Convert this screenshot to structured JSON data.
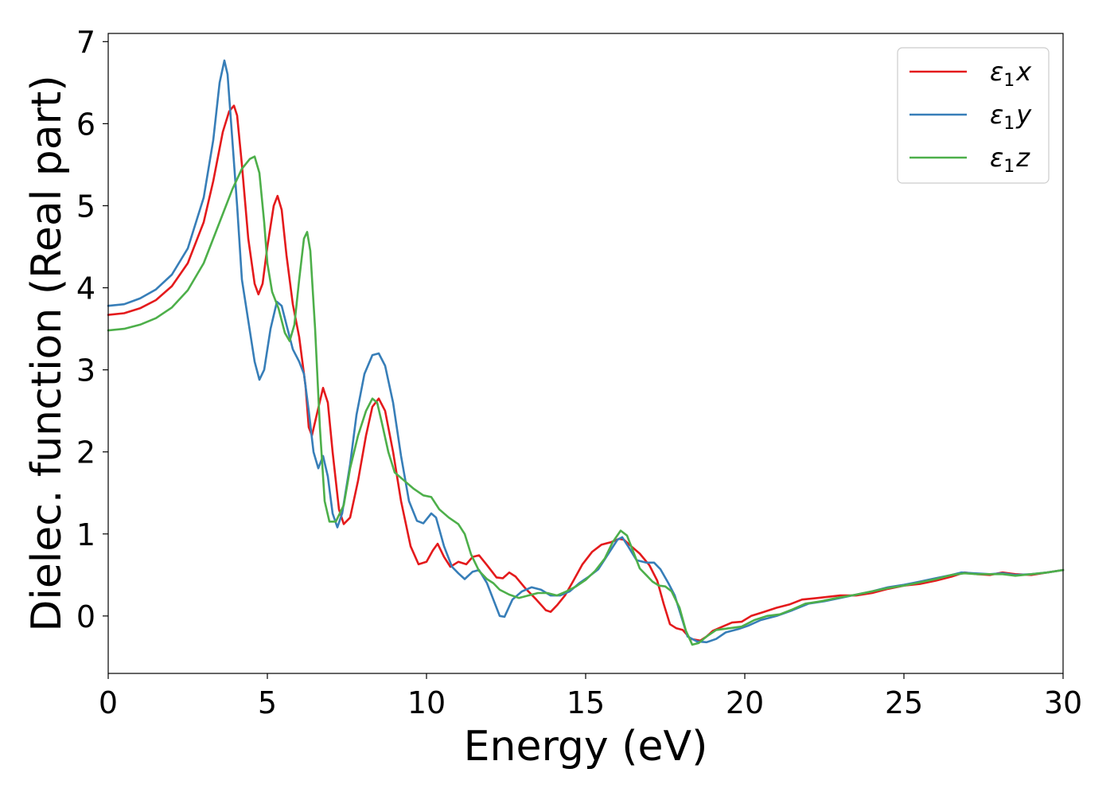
{
  "chart_data": {
    "type": "line",
    "xlabel": "Energy (eV)",
    "ylabel": "Dielec. function (Real part)",
    "xlim": [
      0,
      30
    ],
    "ylim": [
      -0.7,
      7.1
    ],
    "xticks": [
      "0",
      "5",
      "10",
      "15",
      "20",
      "25",
      "30"
    ],
    "yticks": [
      "0",
      "1",
      "2",
      "3",
      "4",
      "5",
      "6",
      "7"
    ],
    "grid": false,
    "legend_position": "top-right",
    "series": [
      {
        "name": "ε1x",
        "legend_base": "ε",
        "legend_sub": "1",
        "legend_var": "x",
        "color": "#e41a1c",
        "points": [
          [
            0,
            3.67
          ],
          [
            0.5,
            3.69
          ],
          [
            1.0,
            3.75
          ],
          [
            1.5,
            3.85
          ],
          [
            2.0,
            4.02
          ],
          [
            2.5,
            4.3
          ],
          [
            3.0,
            4.8
          ],
          [
            3.3,
            5.3
          ],
          [
            3.6,
            5.9
          ],
          [
            3.8,
            6.15
          ],
          [
            3.95,
            6.22
          ],
          [
            4.05,
            6.1
          ],
          [
            4.2,
            5.5
          ],
          [
            4.4,
            4.6
          ],
          [
            4.6,
            4.05
          ],
          [
            4.72,
            3.92
          ],
          [
            4.85,
            4.05
          ],
          [
            5.0,
            4.5
          ],
          [
            5.2,
            5.0
          ],
          [
            5.32,
            5.12
          ],
          [
            5.45,
            4.95
          ],
          [
            5.6,
            4.4
          ],
          [
            5.8,
            3.8
          ],
          [
            6.0,
            3.4
          ],
          [
            6.2,
            2.8
          ],
          [
            6.3,
            2.3
          ],
          [
            6.4,
            2.2
          ],
          [
            6.55,
            2.45
          ],
          [
            6.75,
            2.78
          ],
          [
            6.9,
            2.6
          ],
          [
            7.05,
            2.0
          ],
          [
            7.25,
            1.3
          ],
          [
            7.4,
            1.12
          ],
          [
            7.6,
            1.2
          ],
          [
            7.85,
            1.65
          ],
          [
            8.1,
            2.2
          ],
          [
            8.3,
            2.55
          ],
          [
            8.5,
            2.65
          ],
          [
            8.7,
            2.5
          ],
          [
            8.95,
            2.0
          ],
          [
            9.2,
            1.4
          ],
          [
            9.5,
            0.85
          ],
          [
            9.75,
            0.63
          ],
          [
            10.0,
            0.66
          ],
          [
            10.2,
            0.8
          ],
          [
            10.35,
            0.88
          ],
          [
            10.55,
            0.72
          ],
          [
            10.75,
            0.6
          ],
          [
            11.0,
            0.66
          ],
          [
            11.25,
            0.63
          ],
          [
            11.45,
            0.72
          ],
          [
            11.65,
            0.74
          ],
          [
            11.9,
            0.62
          ],
          [
            12.2,
            0.47
          ],
          [
            12.4,
            0.46
          ],
          [
            12.6,
            0.53
          ],
          [
            12.8,
            0.48
          ],
          [
            13.1,
            0.34
          ],
          [
            13.45,
            0.2
          ],
          [
            13.75,
            0.07
          ],
          [
            13.9,
            0.05
          ],
          [
            14.1,
            0.13
          ],
          [
            14.35,
            0.25
          ],
          [
            14.6,
            0.42
          ],
          [
            14.9,
            0.63
          ],
          [
            15.2,
            0.78
          ],
          [
            15.5,
            0.87
          ],
          [
            15.8,
            0.9
          ],
          [
            16.05,
            0.94
          ],
          [
            16.2,
            0.93
          ],
          [
            16.4,
            0.86
          ],
          [
            16.7,
            0.76
          ],
          [
            17.0,
            0.62
          ],
          [
            17.25,
            0.43
          ],
          [
            17.45,
            0.15
          ],
          [
            17.65,
            -0.1
          ],
          [
            17.85,
            -0.15
          ],
          [
            18.05,
            -0.17
          ],
          [
            18.3,
            -0.28
          ],
          [
            18.6,
            -0.3
          ],
          [
            18.8,
            -0.25
          ],
          [
            19.0,
            -0.18
          ],
          [
            19.3,
            -0.13
          ],
          [
            19.6,
            -0.08
          ],
          [
            19.9,
            -0.07
          ],
          [
            20.2,
            0.0
          ],
          [
            20.6,
            0.05
          ],
          [
            21.0,
            0.1
          ],
          [
            21.4,
            0.14
          ],
          [
            21.8,
            0.2
          ],
          [
            22.3,
            0.22
          ],
          [
            23.0,
            0.25
          ],
          [
            23.5,
            0.25
          ],
          [
            24.0,
            0.28
          ],
          [
            24.5,
            0.33
          ],
          [
            25.0,
            0.37
          ],
          [
            25.5,
            0.39
          ],
          [
            26.0,
            0.43
          ],
          [
            26.5,
            0.48
          ],
          [
            26.9,
            0.53
          ],
          [
            27.3,
            0.51
          ],
          [
            27.7,
            0.5
          ],
          [
            28.1,
            0.53
          ],
          [
            28.5,
            0.51
          ],
          [
            29.0,
            0.5
          ],
          [
            29.5,
            0.53
          ],
          [
            30.0,
            0.56
          ]
        ]
      },
      {
        "name": "ε1y",
        "legend_base": "ε",
        "legend_sub": "1",
        "legend_var": "y",
        "color": "#377eb8",
        "points": [
          [
            0,
            3.78
          ],
          [
            0.5,
            3.8
          ],
          [
            1.0,
            3.87
          ],
          [
            1.5,
            3.98
          ],
          [
            2.0,
            4.16
          ],
          [
            2.5,
            4.48
          ],
          [
            3.0,
            5.1
          ],
          [
            3.3,
            5.8
          ],
          [
            3.5,
            6.5
          ],
          [
            3.65,
            6.77
          ],
          [
            3.75,
            6.6
          ],
          [
            3.9,
            5.8
          ],
          [
            4.05,
            5.0
          ],
          [
            4.2,
            4.1
          ],
          [
            4.4,
            3.6
          ],
          [
            4.6,
            3.1
          ],
          [
            4.75,
            2.88
          ],
          [
            4.9,
            3.0
          ],
          [
            5.1,
            3.5
          ],
          [
            5.3,
            3.83
          ],
          [
            5.45,
            3.78
          ],
          [
            5.6,
            3.55
          ],
          [
            5.8,
            3.25
          ],
          [
            6.0,
            3.1
          ],
          [
            6.15,
            2.95
          ],
          [
            6.3,
            2.5
          ],
          [
            6.45,
            2.0
          ],
          [
            6.6,
            1.8
          ],
          [
            6.75,
            1.95
          ],
          [
            6.9,
            1.7
          ],
          [
            7.05,
            1.25
          ],
          [
            7.2,
            1.08
          ],
          [
            7.35,
            1.25
          ],
          [
            7.6,
            1.85
          ],
          [
            7.8,
            2.45
          ],
          [
            8.05,
            2.95
          ],
          [
            8.3,
            3.18
          ],
          [
            8.5,
            3.2
          ],
          [
            8.7,
            3.05
          ],
          [
            8.95,
            2.6
          ],
          [
            9.2,
            1.95
          ],
          [
            9.45,
            1.4
          ],
          [
            9.7,
            1.16
          ],
          [
            9.9,
            1.13
          ],
          [
            10.15,
            1.25
          ],
          [
            10.3,
            1.2
          ],
          [
            10.55,
            0.85
          ],
          [
            10.8,
            0.6
          ],
          [
            11.0,
            0.52
          ],
          [
            11.2,
            0.45
          ],
          [
            11.45,
            0.54
          ],
          [
            11.65,
            0.56
          ],
          [
            11.9,
            0.4
          ],
          [
            12.1,
            0.2
          ],
          [
            12.3,
            0.0
          ],
          [
            12.45,
            -0.01
          ],
          [
            12.7,
            0.2
          ],
          [
            13.0,
            0.3
          ],
          [
            13.3,
            0.35
          ],
          [
            13.6,
            0.32
          ],
          [
            13.9,
            0.25
          ],
          [
            14.2,
            0.25
          ],
          [
            14.5,
            0.3
          ],
          [
            14.8,
            0.4
          ],
          [
            15.1,
            0.48
          ],
          [
            15.4,
            0.57
          ],
          [
            15.7,
            0.75
          ],
          [
            16.0,
            0.93
          ],
          [
            16.15,
            0.96
          ],
          [
            16.35,
            0.84
          ],
          [
            16.6,
            0.68
          ],
          [
            16.9,
            0.65
          ],
          [
            17.15,
            0.65
          ],
          [
            17.35,
            0.57
          ],
          [
            17.6,
            0.4
          ],
          [
            17.8,
            0.25
          ],
          [
            18.0,
            0.0
          ],
          [
            18.2,
            -0.25
          ],
          [
            18.5,
            -0.31
          ],
          [
            18.8,
            -0.32
          ],
          [
            19.1,
            -0.28
          ],
          [
            19.4,
            -0.2
          ],
          [
            19.8,
            -0.16
          ],
          [
            20.1,
            -0.12
          ],
          [
            20.5,
            -0.05
          ],
          [
            21.0,
            0.0
          ],
          [
            21.5,
            0.07
          ],
          [
            22.0,
            0.15
          ],
          [
            22.5,
            0.18
          ],
          [
            23.0,
            0.22
          ],
          [
            23.5,
            0.26
          ],
          [
            24.0,
            0.3
          ],
          [
            24.5,
            0.35
          ],
          [
            25.0,
            0.38
          ],
          [
            25.5,
            0.42
          ],
          [
            26.0,
            0.46
          ],
          [
            26.5,
            0.5
          ],
          [
            26.8,
            0.53
          ],
          [
            27.2,
            0.52
          ],
          [
            27.7,
            0.51
          ],
          [
            28.1,
            0.52
          ],
          [
            28.5,
            0.5
          ],
          [
            29.0,
            0.51
          ],
          [
            29.5,
            0.53
          ],
          [
            30.0,
            0.56
          ]
        ]
      },
      {
        "name": "ε1z",
        "legend_base": "ε",
        "legend_sub": "1",
        "legend_var": "z",
        "color": "#4daf4a",
        "points": [
          [
            0,
            3.48
          ],
          [
            0.5,
            3.5
          ],
          [
            1.0,
            3.55
          ],
          [
            1.5,
            3.63
          ],
          [
            2.0,
            3.76
          ],
          [
            2.5,
            3.97
          ],
          [
            3.0,
            4.3
          ],
          [
            3.5,
            4.8
          ],
          [
            3.9,
            5.2
          ],
          [
            4.2,
            5.45
          ],
          [
            4.45,
            5.57
          ],
          [
            4.6,
            5.6
          ],
          [
            4.75,
            5.4
          ],
          [
            4.9,
            4.8
          ],
          [
            5.0,
            4.3
          ],
          [
            5.15,
            3.95
          ],
          [
            5.35,
            3.75
          ],
          [
            5.55,
            3.45
          ],
          [
            5.7,
            3.35
          ],
          [
            5.85,
            3.55
          ],
          [
            6.0,
            4.1
          ],
          [
            6.15,
            4.6
          ],
          [
            6.25,
            4.68
          ],
          [
            6.35,
            4.45
          ],
          [
            6.5,
            3.5
          ],
          [
            6.65,
            2.3
          ],
          [
            6.8,
            1.4
          ],
          [
            6.95,
            1.15
          ],
          [
            7.15,
            1.15
          ],
          [
            7.4,
            1.35
          ],
          [
            7.6,
            1.8
          ],
          [
            7.85,
            2.2
          ],
          [
            8.1,
            2.5
          ],
          [
            8.3,
            2.65
          ],
          [
            8.45,
            2.6
          ],
          [
            8.6,
            2.35
          ],
          [
            8.8,
            2.0
          ],
          [
            9.0,
            1.75
          ],
          [
            9.3,
            1.65
          ],
          [
            9.6,
            1.55
          ],
          [
            9.9,
            1.47
          ],
          [
            10.15,
            1.45
          ],
          [
            10.4,
            1.3
          ],
          [
            10.7,
            1.2
          ],
          [
            11.0,
            1.12
          ],
          [
            11.2,
            1.0
          ],
          [
            11.4,
            0.75
          ],
          [
            11.65,
            0.55
          ],
          [
            11.9,
            0.45
          ],
          [
            12.1,
            0.4
          ],
          [
            12.3,
            0.32
          ],
          [
            12.6,
            0.26
          ],
          [
            12.9,
            0.22
          ],
          [
            13.2,
            0.25
          ],
          [
            13.5,
            0.28
          ],
          [
            13.8,
            0.28
          ],
          [
            14.1,
            0.25
          ],
          [
            14.4,
            0.3
          ],
          [
            14.7,
            0.36
          ],
          [
            15.0,
            0.44
          ],
          [
            15.3,
            0.55
          ],
          [
            15.6,
            0.7
          ],
          [
            15.85,
            0.9
          ],
          [
            16.1,
            1.04
          ],
          [
            16.3,
            0.98
          ],
          [
            16.5,
            0.78
          ],
          [
            16.7,
            0.58
          ],
          [
            16.9,
            0.5
          ],
          [
            17.1,
            0.42
          ],
          [
            17.3,
            0.37
          ],
          [
            17.5,
            0.36
          ],
          [
            17.7,
            0.3
          ],
          [
            17.95,
            0.1
          ],
          [
            18.15,
            -0.18
          ],
          [
            18.35,
            -0.35
          ],
          [
            18.55,
            -0.33
          ],
          [
            18.8,
            -0.25
          ],
          [
            19.1,
            -0.17
          ],
          [
            19.5,
            -0.15
          ],
          [
            19.9,
            -0.13
          ],
          [
            20.3,
            -0.05
          ],
          [
            20.7,
            0.0
          ],
          [
            21.1,
            0.02
          ],
          [
            21.5,
            0.08
          ],
          [
            21.9,
            0.15
          ],
          [
            22.4,
            0.18
          ],
          [
            22.9,
            0.22
          ],
          [
            23.5,
            0.26
          ],
          [
            24.0,
            0.3
          ],
          [
            24.5,
            0.34
          ],
          [
            25.0,
            0.37
          ],
          [
            25.5,
            0.41
          ],
          [
            26.0,
            0.45
          ],
          [
            26.5,
            0.5
          ],
          [
            26.9,
            0.52
          ],
          [
            27.3,
            0.51
          ],
          [
            27.7,
            0.51
          ],
          [
            28.1,
            0.51
          ],
          [
            28.5,
            0.49
          ],
          [
            29.0,
            0.51
          ],
          [
            29.5,
            0.53
          ],
          [
            30.0,
            0.56
          ]
        ]
      }
    ]
  }
}
